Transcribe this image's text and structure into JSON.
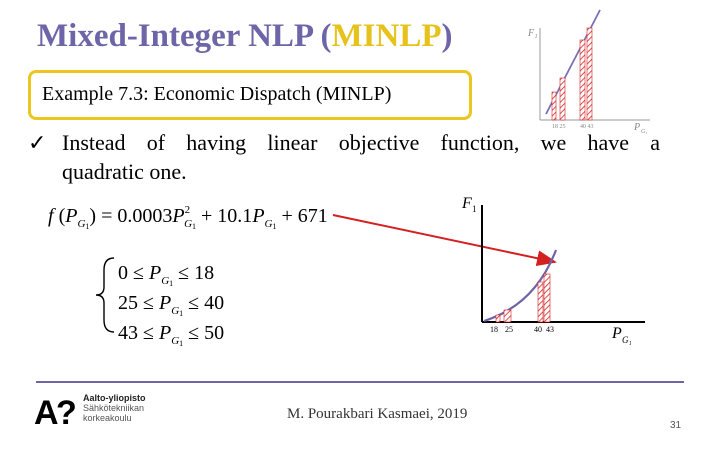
{
  "title": {
    "prefix": "Mixed-Integer NLP (",
    "accent": "MINLP",
    "suffix": ")"
  },
  "example_box": {
    "label": "Example 7.3: Economic Dispatch (MINLP)"
  },
  "bullet": {
    "line1": "Instead of having linear objective function, we have a",
    "line2": "quadratic one."
  },
  "footer": {
    "logo": {
      "lines": [
        "Aalto-yliopisto",
        "Sähkötekniikan",
        "korkeakoulu"
      ]
    },
    "author": "M. Pourakbari Kasmaei, 2019",
    "page": "31"
  },
  "colors": {
    "title": "#6e64a8",
    "accent": "#e6c21a",
    "hatch": "#d42020",
    "curve": "#6e64a8",
    "arrow": "#d42020"
  }
}
